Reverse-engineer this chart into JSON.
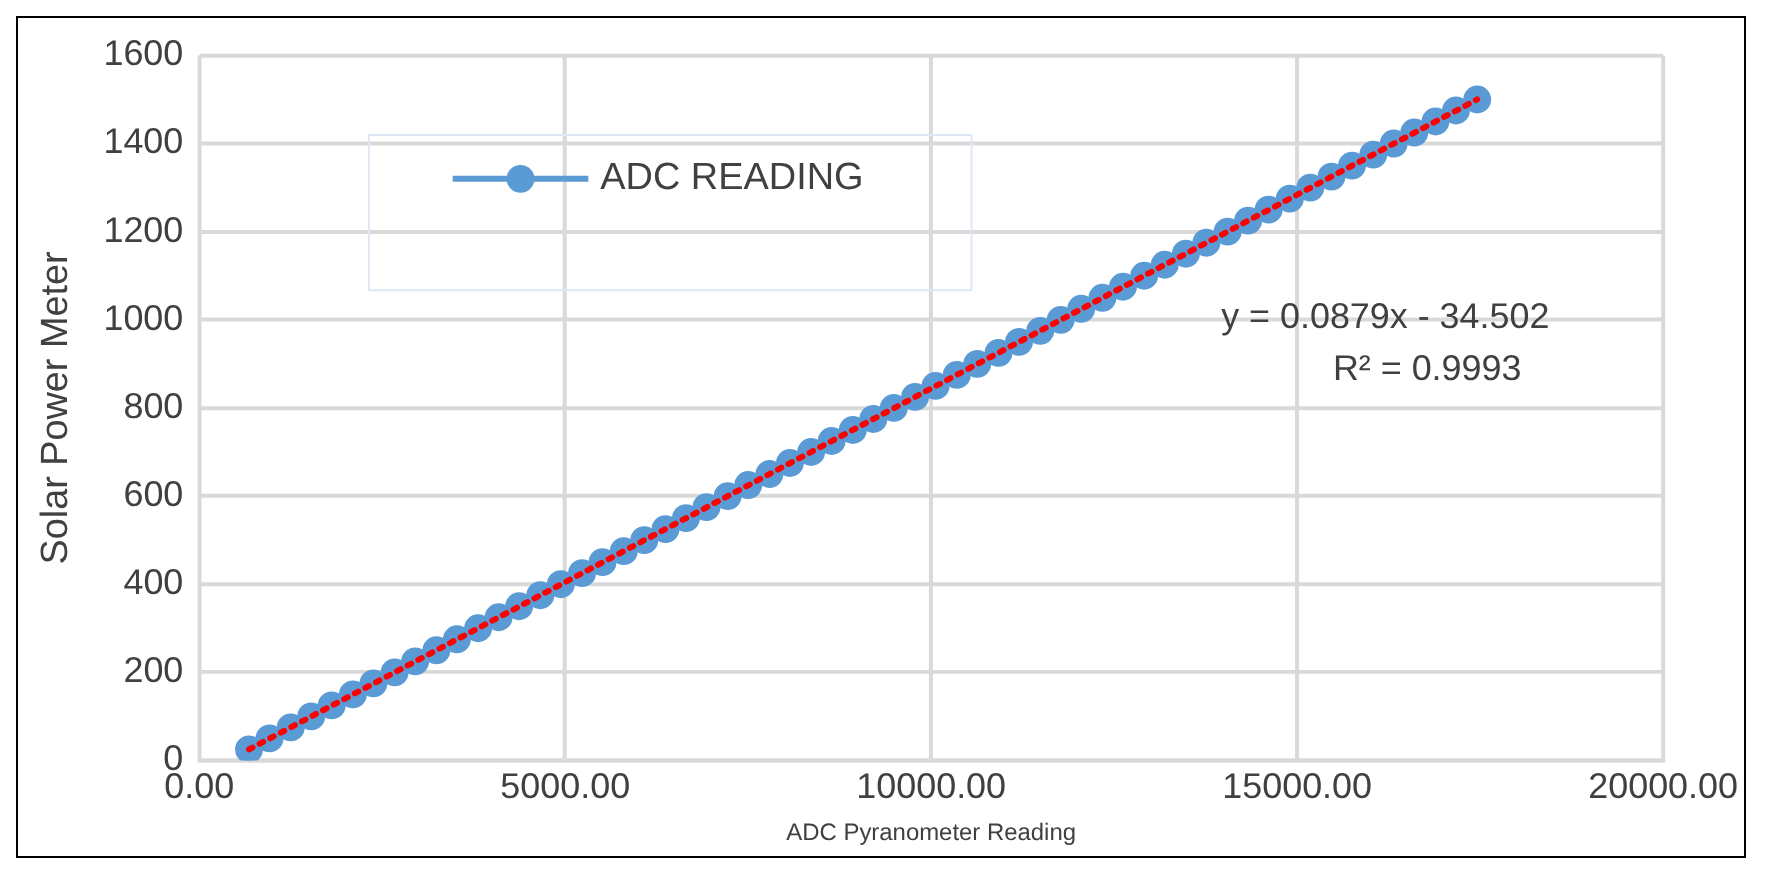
{
  "chart_data": {
    "type": "scatter",
    "xlabel": "ADC Pyranometer Reading",
    "ylabel": "Solar Power Meter",
    "xlim": [
      0,
      20000
    ],
    "xticks": [
      {
        "value": 0,
        "label": "0.00"
      },
      {
        "value": 5000,
        "label": "5000.00"
      },
      {
        "value": 10000,
        "label": "10000.00"
      },
      {
        "value": 15000,
        "label": "15000.00"
      },
      {
        "value": 20000,
        "label": "20000.00"
      }
    ],
    "ylim": [
      0,
      1600
    ],
    "yticks": [
      0,
      200,
      400,
      600,
      800,
      1000,
      1200,
      1400,
      1600
    ],
    "grid": true,
    "legend": "top left",
    "annotations": [
      "y = 0.0879x - 34.502",
      "R² = 0.9993"
    ],
    "series": [
      {
        "name": "ADC READING",
        "color": "#5b9bd5",
        "marker": "circle",
        "line_style": "solid",
        "x": [
          680,
          960,
          1250,
          1530,
          1810,
          2100,
          2380,
          2670,
          2950,
          3240,
          3520,
          3810,
          4090,
          4370,
          4660,
          4940,
          5230,
          5510,
          5800,
          6080,
          6370,
          6650,
          6930,
          7220,
          7500,
          7790,
          8070,
          8360,
          8640,
          8930,
          9210,
          9490,
          9780,
          10060,
          10350,
          10630,
          10920,
          11200,
          11490,
          11770,
          12050,
          12340,
          12620,
          12910,
          13190,
          13480,
          13760,
          14050,
          14330,
          14610,
          14900,
          15180,
          15470,
          15750,
          16040,
          16320,
          16600,
          16890,
          17170,
          17460
        ],
        "values": [
          25,
          50,
          75,
          100,
          125,
          150,
          175,
          200,
          225,
          250,
          275,
          300,
          325,
          350,
          375,
          400,
          425,
          450,
          475,
          500,
          525,
          550,
          575,
          600,
          625,
          650,
          675,
          700,
          725,
          750,
          775,
          800,
          825,
          850,
          875,
          900,
          925,
          950,
          975,
          1000,
          1025,
          1050,
          1075,
          1100,
          1125,
          1150,
          1175,
          1200,
          1225,
          1250,
          1275,
          1300,
          1325,
          1350,
          1375,
          1400,
          1425,
          1450,
          1475,
          1500
        ]
      },
      {
        "type": "line",
        "color": "#ff0000",
        "line_style": "dotted",
        "x": [
          680,
          17460
        ],
        "values": [
          25,
          1500
        ]
      }
    ]
  }
}
